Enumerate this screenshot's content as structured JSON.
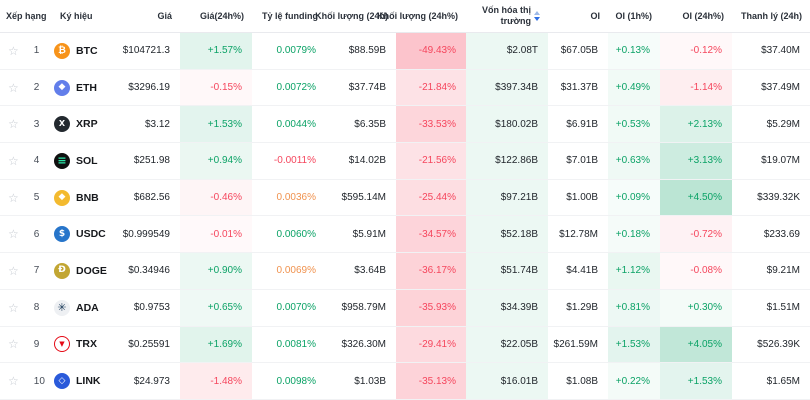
{
  "colors": {
    "green": "#0ba266",
    "red": "#f5465d",
    "orange": "#f0924e",
    "green_rgb": "11,162,102",
    "red_rgb": "245,70,93",
    "mcap_highlight": "rgba(11,162,102,0.08)",
    "sort_active": "#2f6fe4"
  },
  "table": {
    "headers": [
      "Xếp hạng",
      "Ký hiệu",
      "Giá",
      "Giá(24h%)",
      "Tỷ lệ funding",
      "Khối lượng (24h)",
      "Khối lượng (24h%)",
      "Vốn hóa thị trường",
      "OI",
      "OI (1h%)",
      "OI (24h%)",
      "Thanh lý (24h)"
    ],
    "rows": [
      {
        "rank": "1",
        "symbol": "BTC",
        "price": "$104721.3",
        "change24h": "+1.57%",
        "funding": "0.0079%",
        "fundingColor": "green",
        "vol24h": "$88.59B",
        "vol24hPct": "-49.43%",
        "mcap": "$2.08T",
        "oi": "$67.05B",
        "oi1h": "+0.13%",
        "oi24h": "-0.12%",
        "liq24h": "$37.40M",
        "icon": {
          "bg": "#f7931a",
          "fg": "#ffffff",
          "glyph": "₿",
          "size": 9.5
        }
      },
      {
        "rank": "2",
        "symbol": "ETH",
        "price": "$3296.19",
        "change24h": "-0.15%",
        "funding": "0.0072%",
        "fundingColor": "green",
        "vol24h": "$37.74B",
        "vol24hPct": "-21.84%",
        "mcap": "$397.34B",
        "oi": "$31.37B",
        "oi1h": "+0.49%",
        "oi24h": "-1.14%",
        "liq24h": "$37.49M",
        "icon": {
          "bg": "#627eea",
          "fg": "#ffffff",
          "glyph": "◆",
          "size": 9
        }
      },
      {
        "rank": "3",
        "symbol": "XRP",
        "price": "$3.12",
        "change24h": "+1.53%",
        "funding": "0.0044%",
        "fundingColor": "green",
        "vol24h": "$6.35B",
        "vol24hPct": "-33.53%",
        "mcap": "$180.02B",
        "oi": "$6.91B",
        "oi1h": "+0.53%",
        "oi24h": "+2.13%",
        "liq24h": "$5.29M",
        "icon": {
          "bg": "#23292f",
          "fg": "#ffffff",
          "glyph": "X",
          "size": 8
        }
      },
      {
        "rank": "4",
        "symbol": "SOL",
        "price": "$251.98",
        "change24h": "+0.94%",
        "funding": "-0.0011%",
        "fundingColor": "red",
        "vol24h": "$14.02B",
        "vol24hPct": "-21.56%",
        "mcap": "$122.86B",
        "oi": "$7.01B",
        "oi1h": "+0.63%",
        "oi24h": "+3.13%",
        "liq24h": "$19.07M",
        "icon": {
          "bg": "#101010",
          "fg": "#2ee6a8",
          "glyph": "≡",
          "size": 11
        }
      },
      {
        "rank": "5",
        "symbol": "BNB",
        "price": "$682.56",
        "change24h": "-0.46%",
        "funding": "0.0036%",
        "fundingColor": "orange",
        "vol24h": "$595.14M",
        "vol24hPct": "-25.44%",
        "mcap": "$97.21B",
        "oi": "$1.00B",
        "oi1h": "+0.09%",
        "oi24h": "+4.50%",
        "liq24h": "$339.32K",
        "icon": {
          "bg": "#f3ba2f",
          "fg": "#ffffff",
          "glyph": "◆",
          "size": 9
        }
      },
      {
        "rank": "6",
        "symbol": "USDC",
        "price": "$0.999549",
        "change24h": "-0.01%",
        "funding": "0.0060%",
        "fundingColor": "green",
        "vol24h": "$5.91M",
        "vol24hPct": "-34.57%",
        "mcap": "$52.18B",
        "oi": "$12.78M",
        "oi1h": "+0.18%",
        "oi24h": "-0.72%",
        "liq24h": "$233.69",
        "icon": {
          "bg": "#2775ca",
          "fg": "#ffffff",
          "glyph": "$",
          "size": 9
        }
      },
      {
        "rank": "7",
        "symbol": "DOGE",
        "price": "$0.34946",
        "change24h": "+0.90%",
        "funding": "0.0069%",
        "fundingColor": "orange",
        "vol24h": "$3.64B",
        "vol24hPct": "-36.17%",
        "mcap": "$51.74B",
        "oi": "$4.41B",
        "oi1h": "+1.12%",
        "oi24h": "-0.08%",
        "liq24h": "$9.21M",
        "icon": {
          "bg": "#c2a633",
          "fg": "#ffffff",
          "glyph": "Ð",
          "size": 9
        }
      },
      {
        "rank": "8",
        "symbol": "ADA",
        "price": "$0.9753",
        "change24h": "+0.65%",
        "funding": "0.0070%",
        "fundingColor": "green",
        "vol24h": "$958.79M",
        "vol24hPct": "-35.93%",
        "mcap": "$34.39B",
        "oi": "$1.29B",
        "oi1h": "+0.81%",
        "oi24h": "+0.30%",
        "liq24h": "$1.51M",
        "icon": {
          "bg": "#eef0f3",
          "fg": "#1c3b5a",
          "glyph": "✳",
          "size": 11
        }
      },
      {
        "rank": "9",
        "symbol": "TRX",
        "price": "$0.25591",
        "change24h": "+1.69%",
        "funding": "0.0081%",
        "fundingColor": "green",
        "vol24h": "$326.30M",
        "vol24hPct": "-29.41%",
        "mcap": "$22.05B",
        "oi": "$261.59M",
        "oi1h": "+1.53%",
        "oi24h": "+4.05%",
        "liq24h": "$526.39K",
        "icon": {
          "bg": "#ffffff",
          "fg": "#e50915",
          "glyph": "▼",
          "size": 7,
          "ring": "#e50915"
        }
      },
      {
        "rank": "10",
        "symbol": "LINK",
        "price": "$24.973",
        "change24h": "-1.48%",
        "funding": "0.0098%",
        "fundingColor": "green",
        "vol24h": "$1.03B",
        "vol24hPct": "-35.13%",
        "mcap": "$16.01B",
        "oi": "$1.08B",
        "oi1h": "+0.22%",
        "oi24h": "+1.53%",
        "liq24h": "$1.65M",
        "icon": {
          "bg": "#2a5ada",
          "fg": "#ffffff",
          "glyph": "◇",
          "size": 9
        }
      }
    ]
  }
}
